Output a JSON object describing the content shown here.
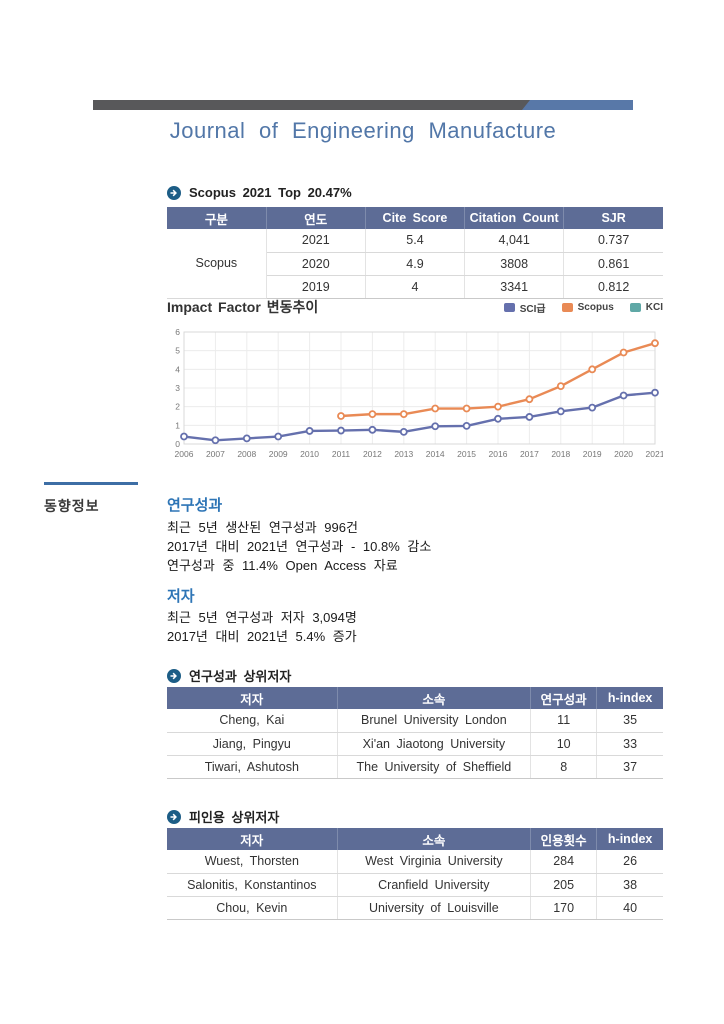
{
  "page": {
    "title": "Journal of Engineering Manufacture"
  },
  "scopus_section": {
    "heading": "Scopus 2021 Top 20.47%",
    "table": {
      "headers": [
        "구분",
        "연도",
        "Cite Score",
        "Citation Count",
        "SJR"
      ],
      "group_label": "Scopus",
      "rows": [
        [
          "2021",
          "5.4",
          "4,041",
          "0.737"
        ],
        [
          "2020",
          "4.9",
          "3808",
          "0.861"
        ],
        [
          "2019",
          "4",
          "3341",
          "0.812"
        ]
      ]
    }
  },
  "chart_data": {
    "type": "line",
    "title": "Impact Factor 변동추이",
    "x": [
      2006,
      2007,
      2008,
      2009,
      2010,
      2011,
      2012,
      2013,
      2014,
      2015,
      2016,
      2017,
      2018,
      2019,
      2020,
      2021
    ],
    "ylim": [
      0,
      6
    ],
    "yticks": [
      0,
      1,
      2,
      3,
      4,
      5,
      6
    ],
    "grid": true,
    "legend_position": "top-right",
    "series": [
      {
        "name": "SCI급",
        "color": "#6570ad",
        "values": [
          0.4,
          0.2,
          0.3,
          0.4,
          0.7,
          0.72,
          0.76,
          0.65,
          0.95,
          0.97,
          1.35,
          1.45,
          1.75,
          1.95,
          2.6,
          2.75
        ]
      },
      {
        "name": "Scopus",
        "color": "#e98a55",
        "values": [
          null,
          null,
          null,
          null,
          null,
          1.5,
          1.6,
          1.6,
          1.9,
          1.9,
          2.0,
          2.4,
          3.1,
          4.0,
          4.9,
          5.4
        ]
      },
      {
        "name": "KCI",
        "color": "#5fa8a6",
        "values": [
          null,
          null,
          null,
          null,
          null,
          null,
          null,
          null,
          null,
          null,
          null,
          null,
          null,
          null,
          null,
          null
        ]
      }
    ]
  },
  "sidebar": {
    "label": "동향정보"
  },
  "research": {
    "heading": "연구성과",
    "lines": [
      "최근 5년 생산된 연구성과 996건",
      "2017년 대비 2021년 연구성과 - 10.8% 감소",
      "연구성과 중 11.4% Open Access 자료"
    ]
  },
  "authors": {
    "heading": "저자",
    "lines": [
      "최근 5년 연구성과 저자 3,094명",
      "2017년 대비 2021년 5.4% 증가"
    ]
  },
  "top_authors": {
    "heading": "연구성과 상위저자",
    "headers": [
      "저자",
      "소속",
      "연구성과",
      "h-index"
    ],
    "rows": [
      [
        "Cheng, Kai",
        "Brunel University London",
        "11",
        "35"
      ],
      [
        "Jiang, Pingyu",
        "Xi'an Jiaotong University",
        "10",
        "33"
      ],
      [
        "Tiwari, Ashutosh",
        "The University of Sheffield",
        "8",
        "37"
      ]
    ]
  },
  "cited_authors": {
    "heading": "피인용 상위저자",
    "headers": [
      "저자",
      "소속",
      "인용횟수",
      "h-index"
    ],
    "rows": [
      [
        "Wuest, Thorsten",
        "West Virginia University",
        "284",
        "26"
      ],
      [
        "Salonitis, Konstantinos",
        "Cranfield University",
        "205",
        "38"
      ],
      [
        "Chou, Kevin",
        "University of Louisville",
        "170",
        "40"
      ]
    ]
  }
}
